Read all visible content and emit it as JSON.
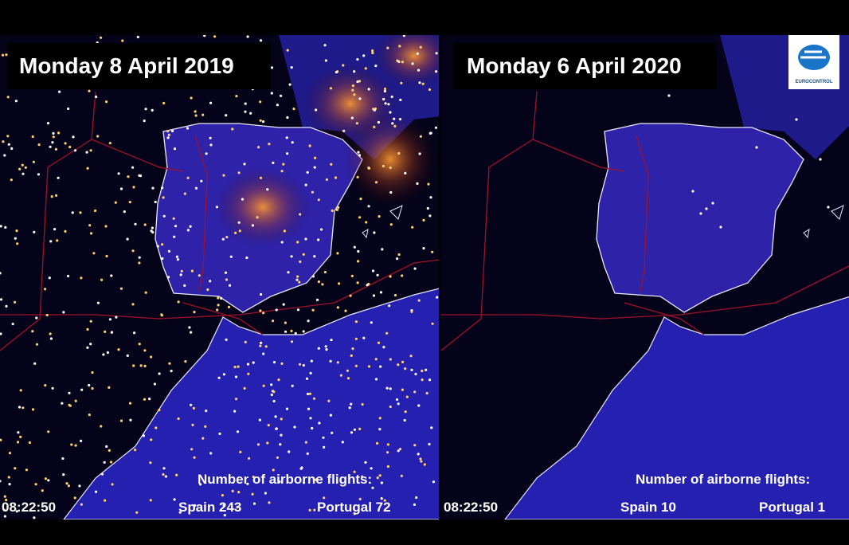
{
  "panels": [
    {
      "title": "Monday 8 April 2019",
      "time": "08:22:50",
      "counter_title": "Number of airborne flights:",
      "spain": "Spain 243",
      "portugal": "Portugal 72"
    },
    {
      "title": "Monday 6 April 2020",
      "time": "08:22:50",
      "counter_title": "Number of airborne flights:",
      "spain": "Spain 10",
      "portugal": "Portugal 1"
    }
  ],
  "logo": "EUROCONTROL"
}
